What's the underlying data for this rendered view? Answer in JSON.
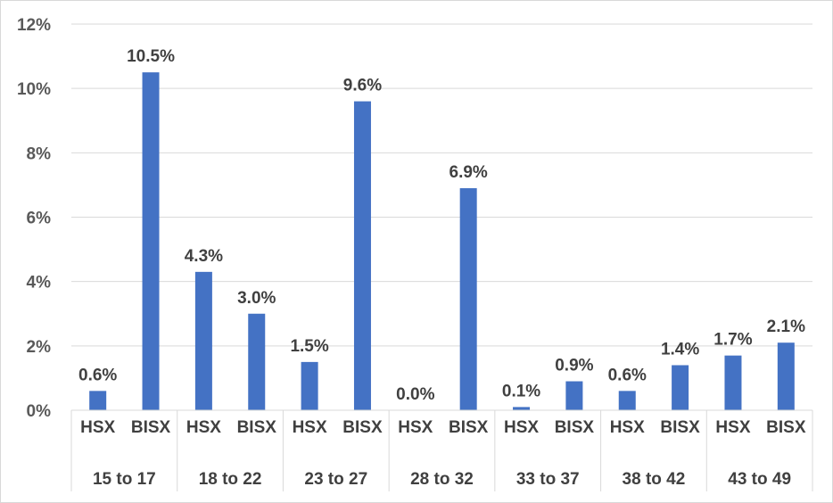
{
  "chart_data": {
    "type": "bar",
    "groups": [
      {
        "label": "15 to 17",
        "bars": [
          {
            "label": "HSX",
            "value": 0.6,
            "text": "0.6%"
          },
          {
            "label": "BISX",
            "value": 10.5,
            "text": "10.5%"
          }
        ]
      },
      {
        "label": "18 to 22",
        "bars": [
          {
            "label": "HSX",
            "value": 4.3,
            "text": "4.3%"
          },
          {
            "label": "BISX",
            "value": 3.0,
            "text": "3.0%"
          }
        ]
      },
      {
        "label": "23 to 27",
        "bars": [
          {
            "label": "HSX",
            "value": 1.5,
            "text": "1.5%"
          },
          {
            "label": "BISX",
            "value": 9.6,
            "text": "9.6%"
          }
        ]
      },
      {
        "label": "28 to 32",
        "bars": [
          {
            "label": "HSX",
            "value": 0.0,
            "text": "0.0%"
          },
          {
            "label": "BISX",
            "value": 6.9,
            "text": "6.9%"
          }
        ]
      },
      {
        "label": "33 to 37",
        "bars": [
          {
            "label": "HSX",
            "value": 0.1,
            "text": "0.1%"
          },
          {
            "label": "BISX",
            "value": 0.9,
            "text": "0.9%"
          }
        ]
      },
      {
        "label": "38 to 42",
        "bars": [
          {
            "label": "HSX",
            "value": 0.6,
            "text": "0.6%"
          },
          {
            "label": "BISX",
            "value": 1.4,
            "text": "1.4%"
          }
        ]
      },
      {
        "label": "43 to 49",
        "bars": [
          {
            "label": "HSX",
            "value": 1.7,
            "text": "1.7%"
          },
          {
            "label": "BISX",
            "value": 2.1,
            "text": "2.1%"
          }
        ]
      }
    ],
    "y_ticks": [
      "0%",
      "2%",
      "4%",
      "6%",
      "8%",
      "10%",
      "12%"
    ],
    "ylim": [
      0,
      12
    ],
    "grid": true,
    "bar_color": "#4472c4",
    "title": "",
    "xlabel": "",
    "ylabel": ""
  }
}
